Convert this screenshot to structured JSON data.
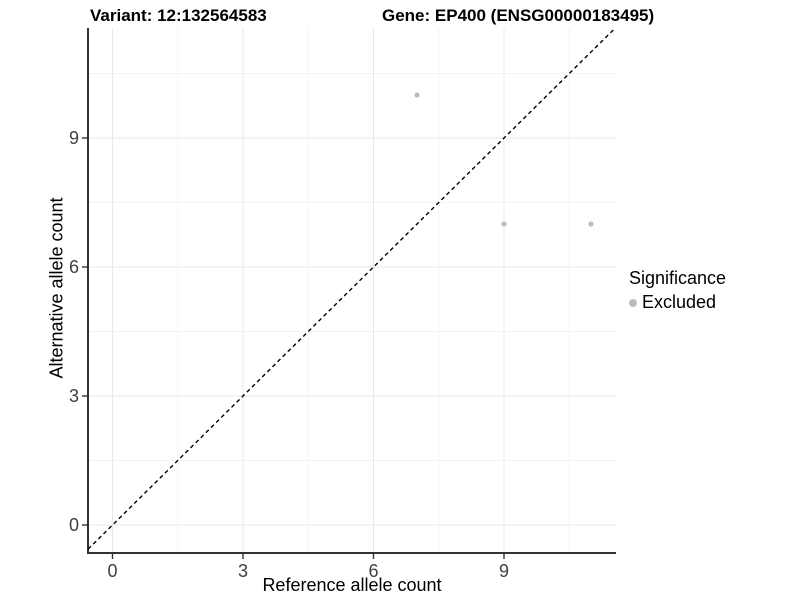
{
  "header": {
    "variant_title": "Variant: 12:132564583",
    "gene_title": "Gene: EP400 (ENSG00000183495)"
  },
  "chart_data": {
    "type": "scatter",
    "title_left": "Variant: 12:132564583",
    "title_right": "Gene: EP400 (ENSG00000183495)",
    "xlabel": "Reference allele count",
    "ylabel": "Alternative allele count",
    "x_major_ticks": [
      0,
      3,
      6,
      9
    ],
    "x_minor_ticks": [
      1.5,
      4.5,
      7.5,
      10.5
    ],
    "y_major_ticks": [
      0,
      3,
      6,
      9
    ],
    "y_minor_ticks": [
      1.5,
      4.5,
      7.5,
      10.5
    ],
    "xlim": [
      -0.56,
      11.57
    ],
    "ylim": [
      -0.65,
      11.56
    ],
    "grid": true,
    "identity_line": {
      "slope": 1,
      "intercept": 0,
      "style": "dashed",
      "color": "#000000"
    },
    "series": [
      {
        "name": "Excluded",
        "color": "#bdbdbd",
        "points": [
          {
            "x": 7,
            "y": 10
          },
          {
            "x": 9,
            "y": 7
          },
          {
            "x": 11,
            "y": 7
          }
        ]
      }
    ],
    "legend": {
      "title": "Significance",
      "position": "right",
      "items": [
        {
          "label": "Excluded",
          "color": "#bdbdbd"
        }
      ]
    }
  },
  "colors": {
    "background": "#ffffff",
    "axis_line": "#333333",
    "tick_text": "#404040",
    "grid_major": "#e9e9e9",
    "grid_minor": "#f4f4f4",
    "point": "#bdbdbd"
  }
}
